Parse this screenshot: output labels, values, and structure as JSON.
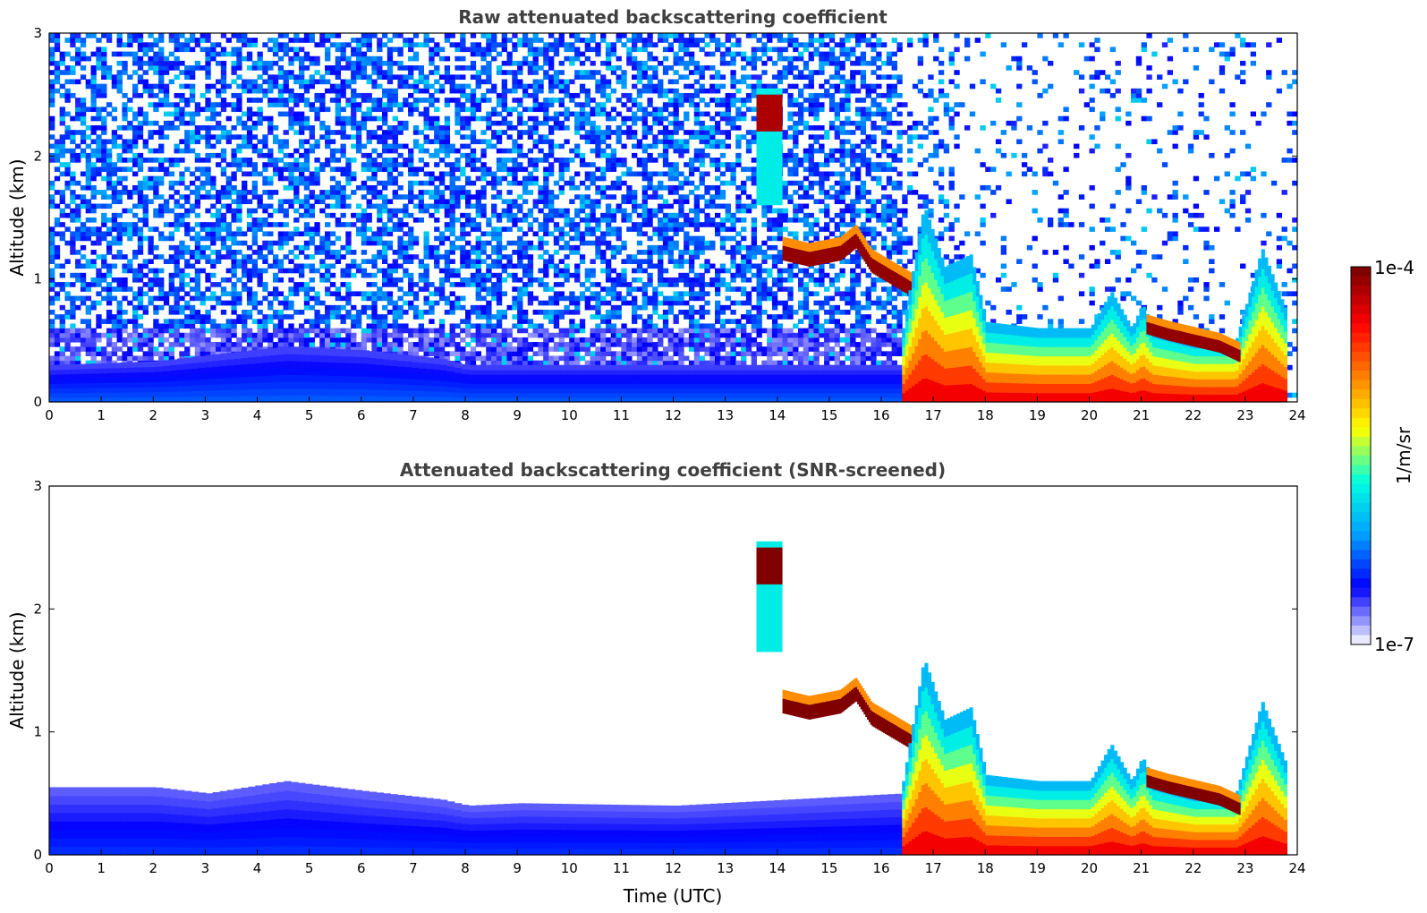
{
  "chart_data": [
    {
      "type": "heatmap",
      "title": "Raw attenuated backscattering coefficient",
      "xlabel": "",
      "ylabel": "Altitude (km)",
      "xlim": [
        0,
        24
      ],
      "ylim": [
        0,
        3
      ],
      "xticks": [
        "0",
        "1",
        "2",
        "3",
        "4",
        "5",
        "6",
        "7",
        "8",
        "9",
        "10",
        "11",
        "12",
        "13",
        "14",
        "15",
        "16",
        "17",
        "18",
        "19",
        "20",
        "21",
        "22",
        "23",
        "24"
      ],
      "yticks": [
        "0",
        "1",
        "2",
        "3"
      ],
      "noise_field": {
        "max_altitude": 3,
        "night_end_time": 16.4,
        "night_noise_below": 0.6,
        "day_sparse_after": 17.5
      },
      "features": [
        {
          "name": "nocturnal-boundary-layer",
          "kind": "layer",
          "t": [
            0,
            2,
            3,
            4.5,
            6,
            7.5,
            8,
            9,
            12,
            16.4
          ],
          "top": [
            0.3,
            0.33,
            0.38,
            0.45,
            0.42,
            0.35,
            0.3,
            0.3,
            0.3,
            0.3
          ],
          "level": 0.22
        },
        {
          "name": "cirrus-cloud-2km",
          "kind": "blob",
          "t": [
            13.6,
            14.1
          ],
          "base": 1.6,
          "top": 2.55,
          "core": [
            2.2,
            2.5
          ],
          "level": 0.95
        },
        {
          "name": "elevated-cloud-layer",
          "kind": "line",
          "t": [
            14.1,
            14.6,
            15.2,
            15.5,
            15.8,
            16.2,
            16.6
          ],
          "alt": [
            1.15,
            1.1,
            1.15,
            1.25,
            1.05,
            0.95,
            0.85
          ],
          "thickness": 0.12,
          "level": 0.98
        },
        {
          "name": "daytime-mixing-layer",
          "kind": "layer",
          "t": [
            16.4,
            16.8,
            17.2,
            17.7,
            18,
            19,
            20,
            20.4,
            20.8,
            21,
            21.2,
            22,
            22.8,
            23.3,
            23.8
          ],
          "top": [
            0.6,
            1.6,
            1.1,
            1.2,
            0.65,
            0.6,
            0.6,
            0.9,
            0.6,
            0.8,
            0.6,
            0.5,
            0.5,
            1.25,
            0.7
          ],
          "level": 0.62
        },
        {
          "name": "low-cloud-layer",
          "kind": "line",
          "t": [
            21.1,
            21.5,
            22,
            22.5,
            22.9
          ],
          "alt": [
            0.55,
            0.5,
            0.45,
            0.4,
            0.32
          ],
          "thickness": 0.1,
          "level": 0.98
        }
      ]
    },
    {
      "type": "heatmap",
      "title": "Attenuated backscattering coefficient (SNR-screened)",
      "xlabel": "Time (UTC)",
      "ylabel": "Altitude (km)",
      "xlim": [
        0,
        24
      ],
      "ylim": [
        0,
        3
      ],
      "xticks": [
        "0",
        "1",
        "2",
        "3",
        "4",
        "5",
        "6",
        "7",
        "8",
        "9",
        "10",
        "11",
        "12",
        "13",
        "14",
        "15",
        "16",
        "17",
        "18",
        "19",
        "20",
        "21",
        "22",
        "23",
        "24"
      ],
      "yticks": [
        "0",
        "1",
        "2",
        "3"
      ],
      "noise_field": {
        "max_altitude": 0,
        "night_end_time": 16.4,
        "night_noise_below": 0,
        "day_sparse_after": 24
      },
      "features": [
        {
          "name": "nocturnal-boundary-layer",
          "kind": "layer",
          "t": [
            0,
            2,
            3,
            4.5,
            6,
            7.5,
            8,
            9,
            12,
            16.4
          ],
          "top": [
            0.55,
            0.55,
            0.5,
            0.6,
            0.52,
            0.45,
            0.4,
            0.42,
            0.4,
            0.5
          ],
          "level": 0.18
        },
        {
          "name": "cirrus-cloud-2km",
          "kind": "blob",
          "t": [
            13.6,
            14.1
          ],
          "base": 1.65,
          "top": 2.55,
          "core": [
            2.2,
            2.5
          ],
          "level": 1.0
        },
        {
          "name": "elevated-cloud-layer",
          "kind": "line",
          "t": [
            14.1,
            14.6,
            15.2,
            15.5,
            15.8,
            16.2,
            16.6
          ],
          "alt": [
            1.15,
            1.1,
            1.15,
            1.25,
            1.05,
            0.95,
            0.85
          ],
          "thickness": 0.12,
          "level": 1.0
        },
        {
          "name": "daytime-mixing-layer",
          "kind": "layer",
          "t": [
            16.4,
            16.8,
            17.2,
            17.7,
            18,
            19,
            20,
            20.4,
            20.8,
            21,
            21.2,
            22,
            22.8,
            23.3,
            23.8
          ],
          "top": [
            0.6,
            1.6,
            1.1,
            1.2,
            0.65,
            0.6,
            0.6,
            0.9,
            0.6,
            0.8,
            0.6,
            0.5,
            0.5,
            1.25,
            0.7
          ],
          "level": 0.62
        },
        {
          "name": "low-cloud-layer",
          "kind": "line",
          "t": [
            21.1,
            21.5,
            22,
            22.5,
            22.9
          ],
          "alt": [
            0.55,
            0.5,
            0.45,
            0.4,
            0.32
          ],
          "thickness": 0.1,
          "level": 1.0
        }
      ]
    }
  ],
  "colorbar": {
    "max_label": "1e-4",
    "min_label": "1e-7",
    "unit_label": "1/m/sr",
    "colormap": [
      "#e8e8ff",
      "#0000ff",
      "#00a0ff",
      "#00ffe0",
      "#ffff00",
      "#ff8000",
      "#ff0000",
      "#800000"
    ]
  }
}
